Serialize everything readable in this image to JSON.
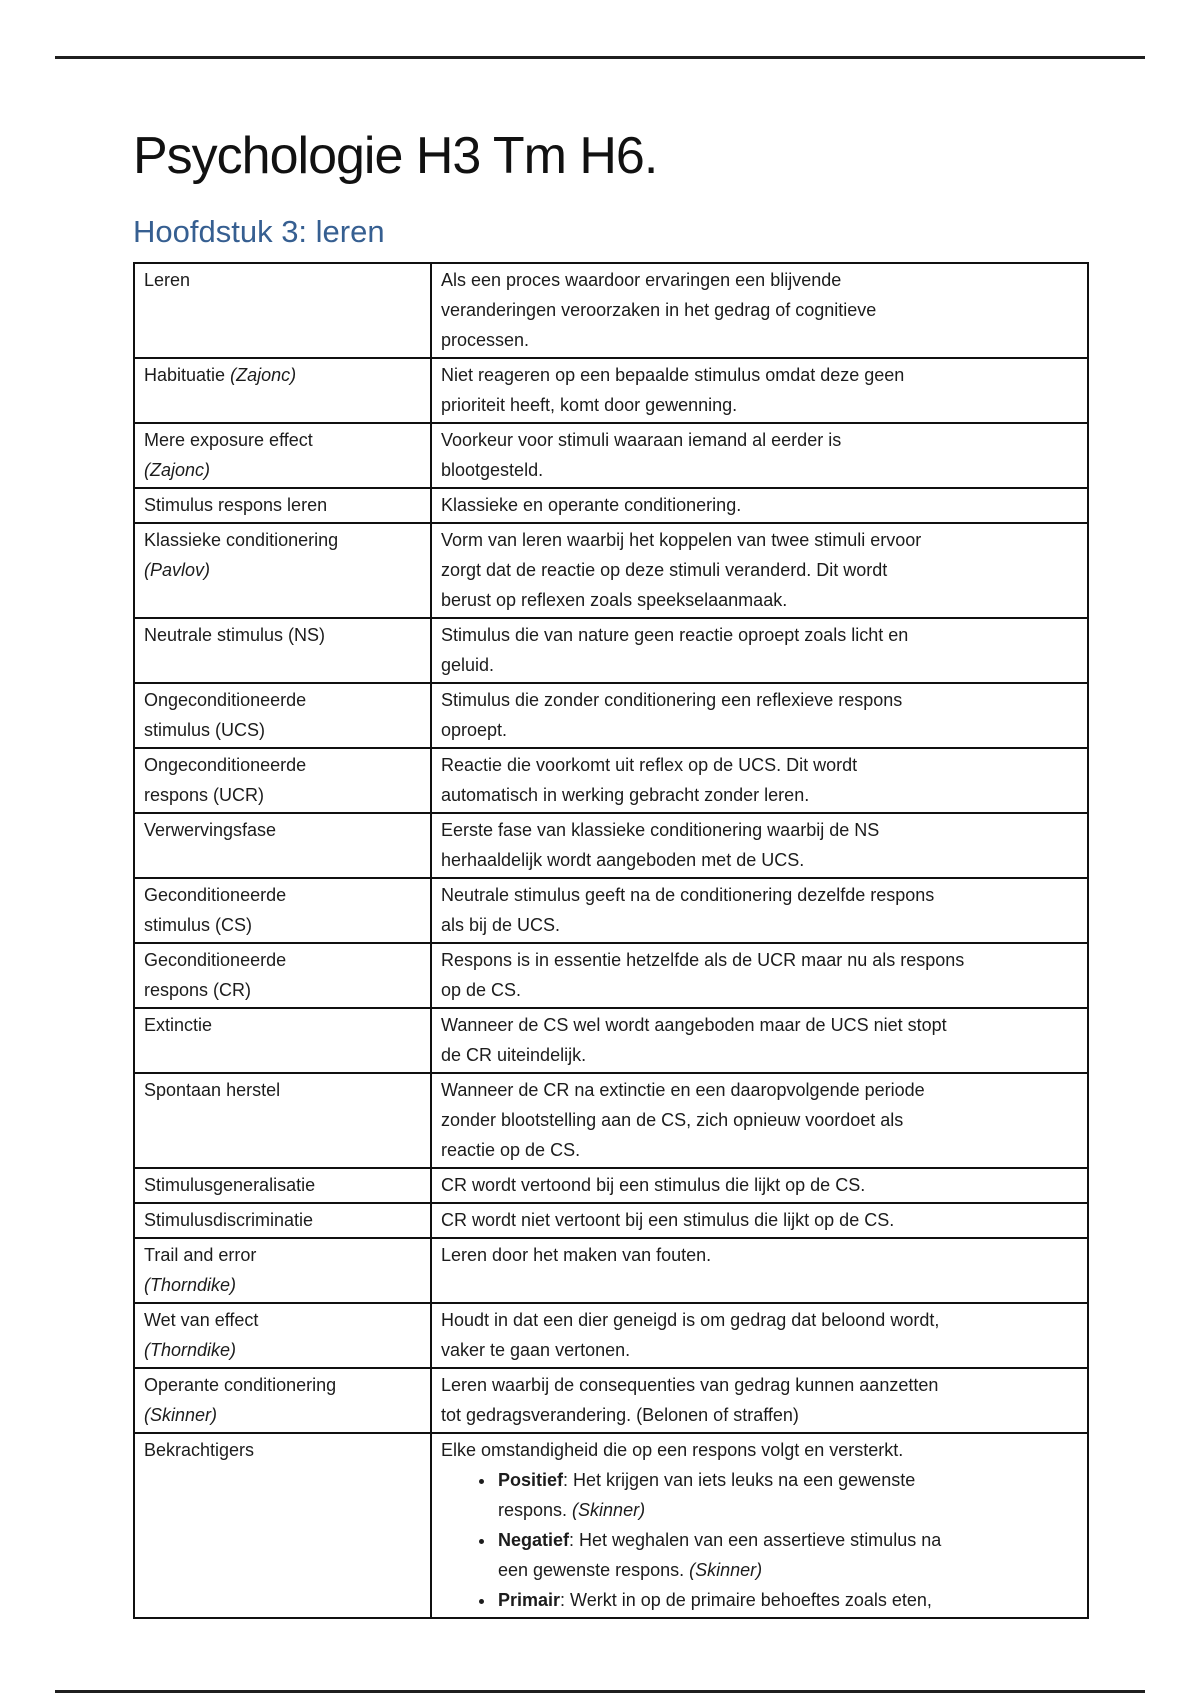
{
  "doc": {
    "title": "Psychologie H3 Tm H6.",
    "section_heading": "Hoofdstuk 3: leren",
    "heading_color": "#365f91",
    "text_color": "#1c1c1c",
    "rule_color": "#1f1f1f"
  },
  "glossary": {
    "rows": [
      {
        "term": "Leren",
        "note": "",
        "note_newline": false,
        "definition": "Als een proces waardoor ervaringen een blijvende\nveranderingen veroorzaken in het gedrag of cognitieve\nprocessen.",
        "bullets": []
      },
      {
        "term": "Habituatie",
        "note": "(Zajonc)",
        "note_newline": false,
        "definition": "Niet reageren op een bepaalde stimulus omdat deze geen\nprioriteit heeft, komt door gewenning.",
        "bullets": []
      },
      {
        "term": "Mere exposure effect",
        "note": "(Zajonc)",
        "note_newline": true,
        "definition": "Voorkeur voor stimuli waaraan iemand al eerder is\nblootgesteld.",
        "bullets": []
      },
      {
        "term": "Stimulus respons leren",
        "note": "",
        "note_newline": false,
        "definition": "Klassieke en operante conditionering.",
        "bullets": []
      },
      {
        "term": "Klassieke conditionering",
        "note": "(Pavlov)",
        "note_newline": true,
        "definition": "Vorm van leren waarbij het koppelen van twee stimuli ervoor\nzorgt dat de reactie op deze stimuli veranderd. Dit wordt\nberust op reflexen zoals speekselaanmaak.",
        "bullets": []
      },
      {
        "term": "Neutrale stimulus (NS)",
        "note": "",
        "note_newline": false,
        "definition": "Stimulus die van nature geen reactie oproept zoals licht en\ngeluid.",
        "bullets": []
      },
      {
        "term": "Ongeconditioneerde\nstimulus (UCS)",
        "note": "",
        "note_newline": false,
        "definition": "Stimulus die zonder conditionering een reflexieve respons\noproept.",
        "bullets": []
      },
      {
        "term": "Ongeconditioneerde\nrespons (UCR)",
        "note": "",
        "note_newline": false,
        "definition": "Reactie die voorkomt uit reflex op de UCS. Dit wordt\nautomatisch in werking gebracht zonder leren.",
        "bullets": []
      },
      {
        "term": "Verwervingsfase",
        "note": "",
        "note_newline": false,
        "definition": "Eerste fase van klassieke conditionering waarbij de NS\nherhaaldelijk wordt aangeboden met de UCS.",
        "bullets": []
      },
      {
        "term": "Geconditioneerde\nstimulus (CS)",
        "note": "",
        "note_newline": false,
        "definition": "Neutrale stimulus geeft na de conditionering dezelfde respons\nals bij de UCS.",
        "bullets": []
      },
      {
        "term": "Geconditioneerde\nrespons (CR)",
        "note": "",
        "note_newline": false,
        "definition": "Respons is in essentie hetzelfde als de UCR maar nu als respons\nop de CS.",
        "bullets": []
      },
      {
        "term": "Extinctie",
        "note": "",
        "note_newline": false,
        "definition": "Wanneer de CS wel wordt aangeboden maar de UCS niet stopt\nde CR uiteindelijk.",
        "bullets": []
      },
      {
        "term": "Spontaan herstel",
        "note": "",
        "note_newline": false,
        "definition": "Wanneer de CR na extinctie en een daaropvolgende periode\nzonder blootstelling aan de CS, zich opnieuw voordoet als\nreactie op de CS.",
        "bullets": []
      },
      {
        "term": "Stimulusgeneralisatie",
        "note": "",
        "note_newline": false,
        "definition": "CR wordt vertoond bij een stimulus die lijkt op de CS.",
        "bullets": []
      },
      {
        "term": "Stimulusdiscriminatie",
        "note": "",
        "note_newline": false,
        "definition": "CR wordt niet vertoont bij een stimulus die lijkt op de CS.",
        "bullets": []
      },
      {
        "term": "Trail and error",
        "note": "(Thorndike)",
        "note_newline": true,
        "definition": "Leren door het maken van fouten.",
        "bullets": []
      },
      {
        "term": "Wet van effect",
        "note": "(Thorndike)",
        "note_newline": true,
        "definition": "Houdt in dat een dier geneigd is om gedrag dat beloond wordt,\nvaker te gaan vertonen.",
        "bullets": []
      },
      {
        "term": "Operante conditionering",
        "note": "(Skinner)",
        "note_newline": true,
        "definition": "Leren waarbij de consequenties van gedrag kunnen aanzetten\ntot gedragsverandering. (Belonen of straffen)",
        "bullets": []
      },
      {
        "term": "Bekrachtigers",
        "note": "",
        "note_newline": false,
        "definition": "Elke omstandigheid die op een respons volgt en versterkt.",
        "bullets": [
          {
            "label": "Positief",
            "text": ": Het krijgen van iets leuks na een gewenste\nrespons. ",
            "ref": "(Skinner)"
          },
          {
            "label": "Negatief",
            "text": ": Het weghalen van een assertieve stimulus na\neen gewenste respons. ",
            "ref": "(Skinner)"
          },
          {
            "label": "Primair",
            "text": ": Werkt in op de primaire behoeftes zoals eten,",
            "ref": ""
          }
        ]
      }
    ]
  }
}
